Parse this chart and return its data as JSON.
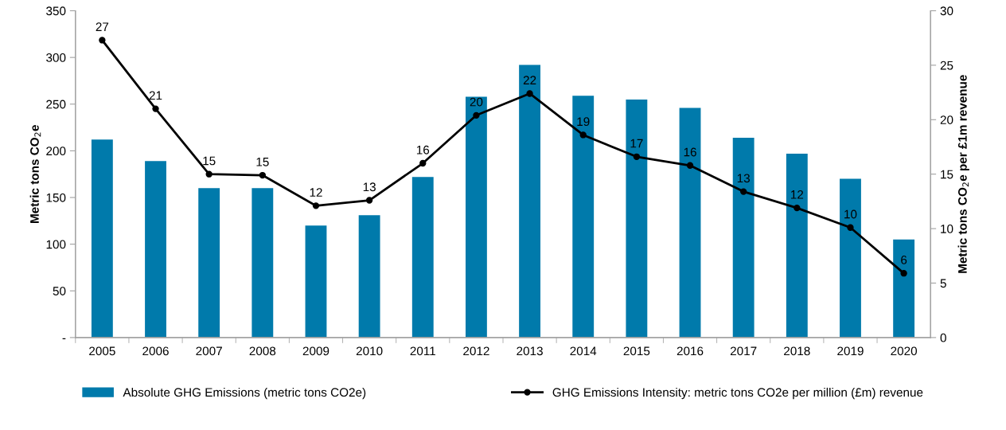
{
  "chart_data": {
    "type": "bar",
    "categories": [
      "2005",
      "2006",
      "2007",
      "2008",
      "2009",
      "2010",
      "2011",
      "2012",
      "2013",
      "2014",
      "2015",
      "2016",
      "2017",
      "2018",
      "2019",
      "2020"
    ],
    "series": [
      {
        "name": "Absolute GHG Emissions (metric tons CO2e)",
        "type": "bar",
        "color": "#007aab",
        "values": [
          212,
          189,
          160,
          160,
          120,
          131,
          172,
          258,
          292,
          259,
          255,
          246,
          214,
          197,
          170,
          105
        ]
      },
      {
        "name": "GHG Emissions Intensity: metric tons CO2e per million (£m) revenue",
        "type": "line",
        "axis": "y2",
        "color": "#000000",
        "marker": "circle",
        "values": [
          27.3,
          21.0,
          15.0,
          14.9,
          12.1,
          12.6,
          16.0,
          20.4,
          22.4,
          18.6,
          16.6,
          15.8,
          13.4,
          11.9,
          10.1,
          5.9
        ],
        "value_labels": [
          "27",
          "21",
          "15",
          "15",
          "12",
          "13",
          "16",
          "20",
          "22",
          "19",
          "17",
          "16",
          "13",
          "12",
          "10",
          "6"
        ]
      }
    ],
    "ylabel": "Metric tons CO$_{2}$e",
    "y2label": "Metric tons CO$_{2}$e per £1m revenue",
    "ylim": [
      0,
      350
    ],
    "yticks": [
      {
        "value": 0,
        "label": "-"
      },
      50,
      100,
      150,
      200,
      250,
      300,
      350
    ],
    "y2lim": [
      0,
      30
    ],
    "y2ticks": [
      0,
      5,
      10,
      15,
      20,
      25,
      30
    ],
    "legend": "bottom",
    "grid": false
  }
}
